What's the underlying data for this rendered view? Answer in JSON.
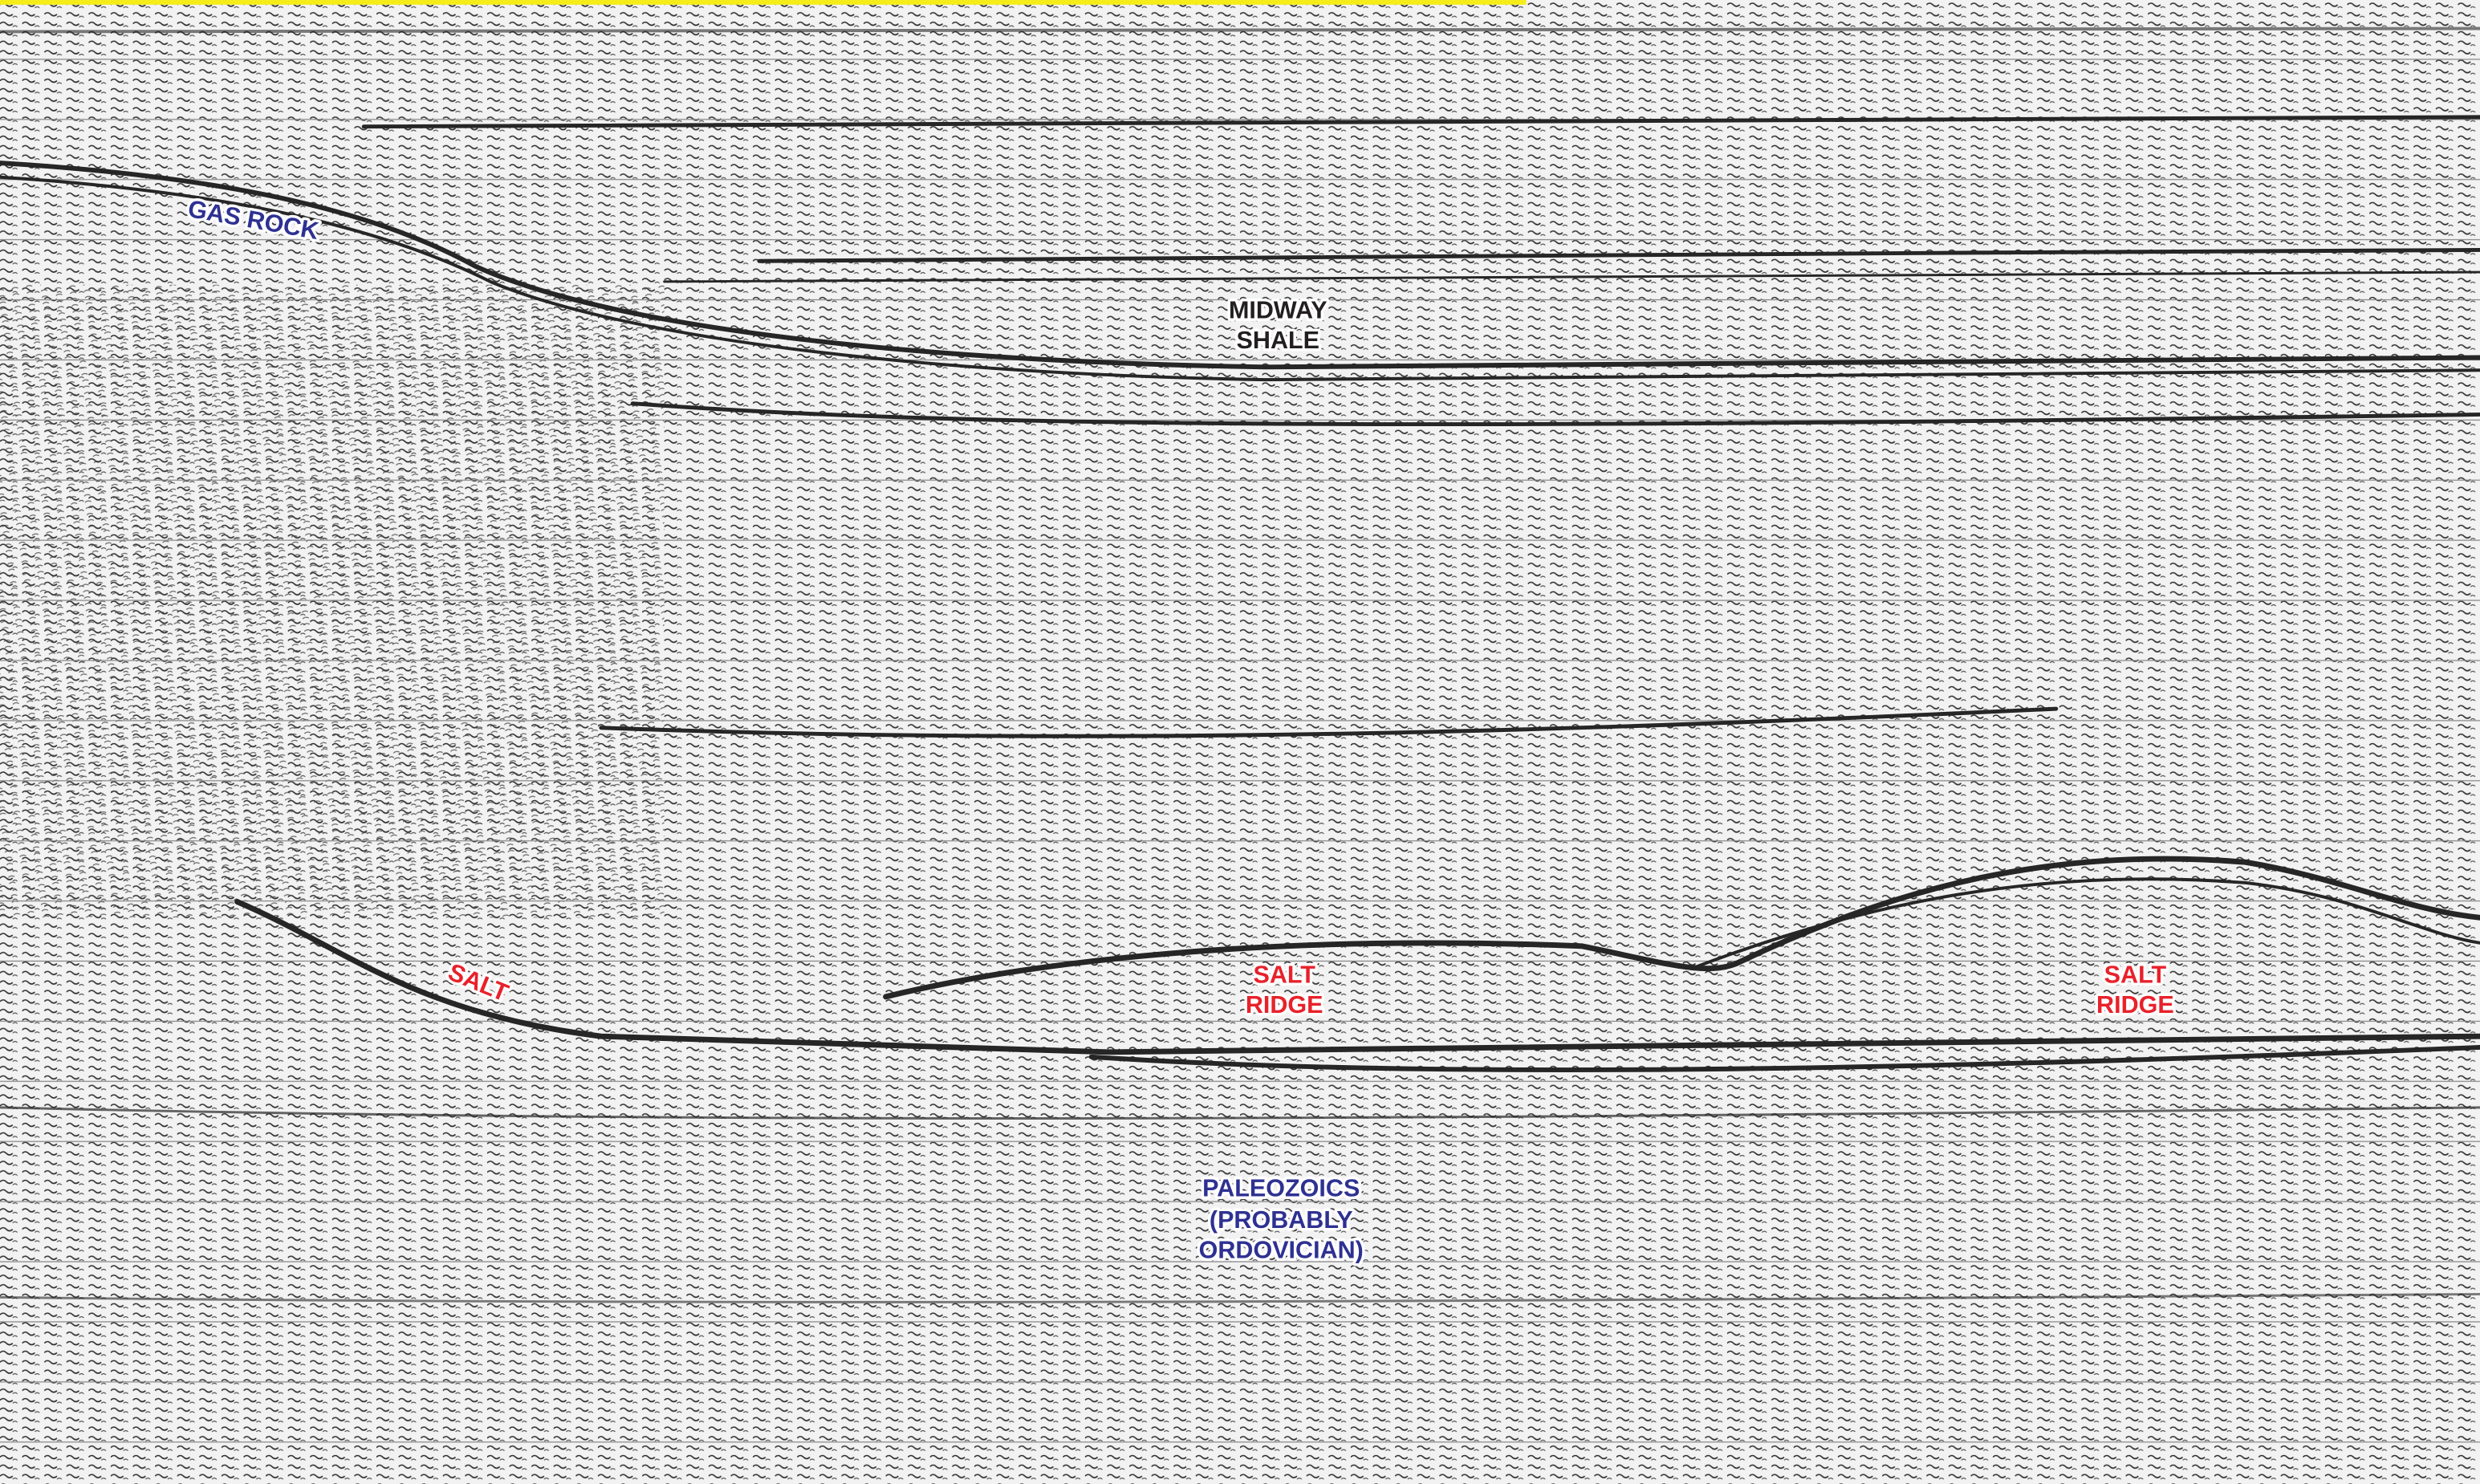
{
  "annotations": {
    "gas_rock": "GAS ROCK",
    "midway_shale": [
      "MIDWAY",
      "SHALE"
    ],
    "salt": "SALT",
    "salt_ridge_1": [
      "SALT",
      "RIDGE"
    ],
    "salt_ridge_2": [
      "SALT",
      "RIDGE"
    ],
    "paleozoics": [
      "PALEOZOICS",
      "(PROBABLY",
      "ORDOVICIAN)"
    ]
  }
}
